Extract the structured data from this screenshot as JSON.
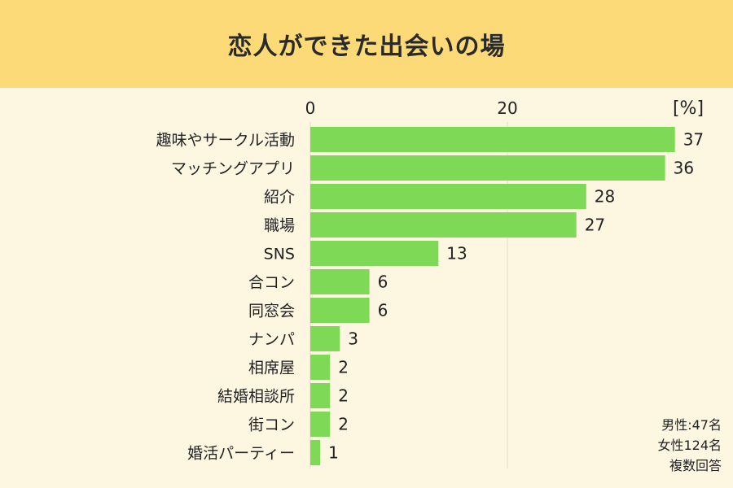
{
  "chart_data": {
    "type": "bar",
    "orientation": "horizontal",
    "title": "恋人ができた出会いの場",
    "unit": "[%]",
    "xticks": [
      0,
      20
    ],
    "xlim": [
      0,
      40
    ],
    "grid": true,
    "bar_color": "#7ed957",
    "categories": [
      "趣味やサークル活動",
      "マッチングアプリ",
      "紹介",
      "職場",
      "SNS",
      "合コン",
      "同窓会",
      "ナンパ",
      "相席屋",
      "結婚相談所",
      "街コン",
      "婚活パーティー"
    ],
    "values": [
      37,
      36,
      28,
      27,
      13,
      6,
      6,
      3,
      2,
      2,
      2,
      1
    ]
  },
  "note": {
    "male": "男性:47名",
    "female": "女性124名",
    "multi": "複数回答"
  },
  "colors": {
    "header_bg": "#fcda78",
    "page_bg": "#fdf7e2",
    "bar": "#7ed957"
  }
}
